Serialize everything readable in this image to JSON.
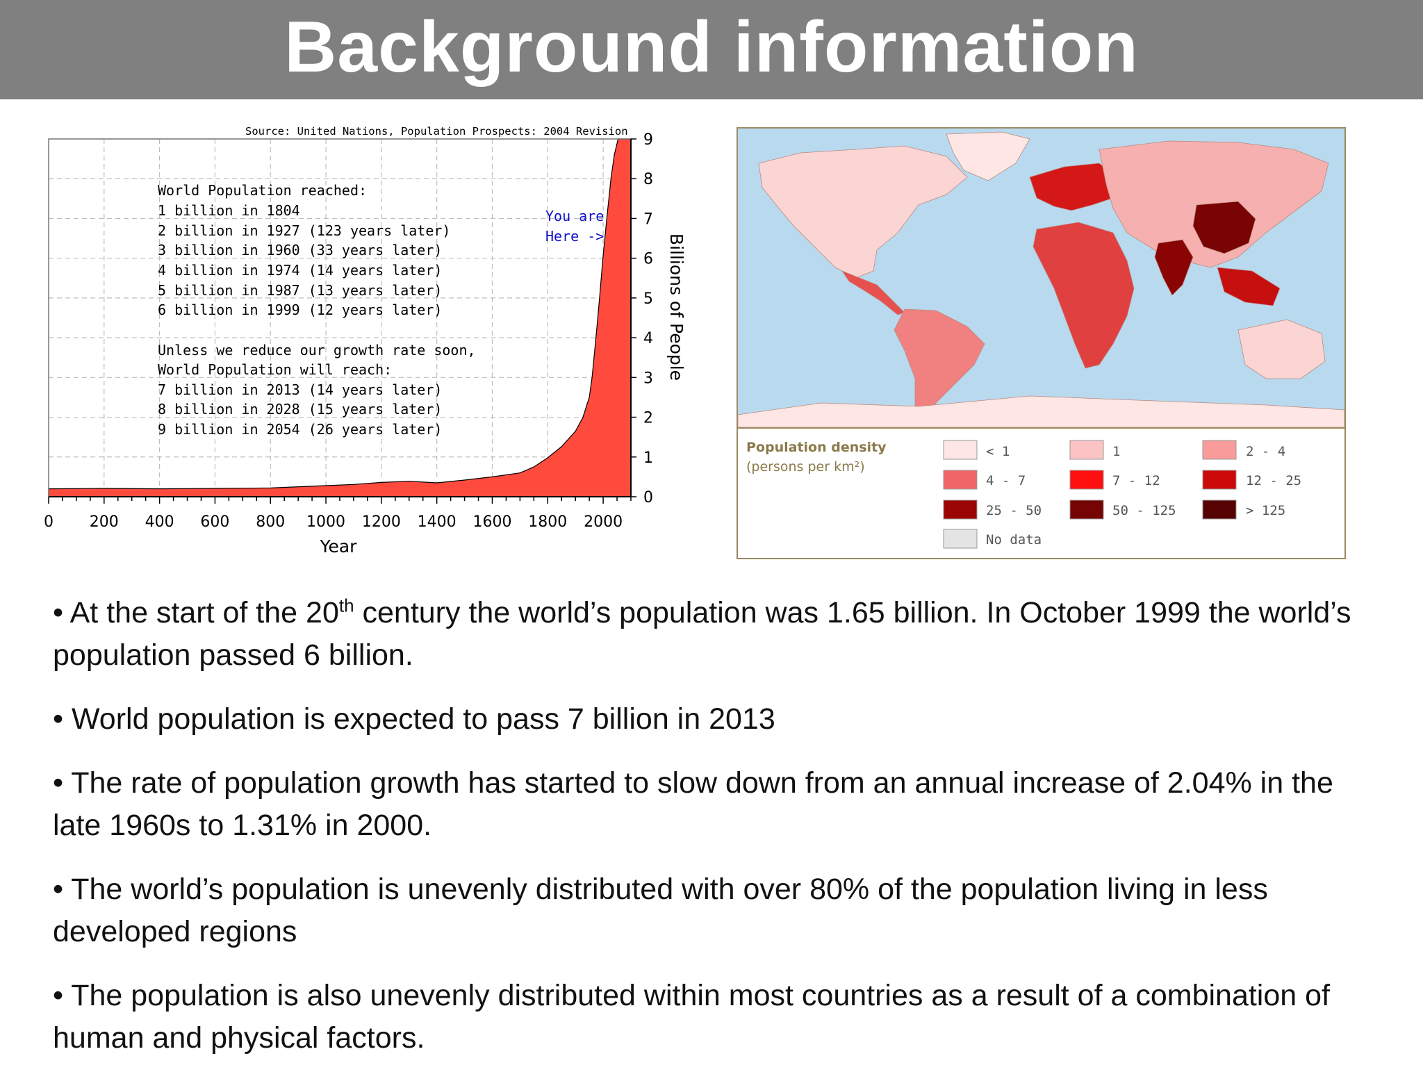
{
  "header": {
    "title": "Background information"
  },
  "chart": {
    "source": "Source: United Nations, Population Prospects: 2004 Revision",
    "milestones_heading": "World Population reached:",
    "milestones": [
      "1 billion in 1804",
      "2 billion in 1927 (123 years later)",
      "3 billion in 1960 (33 years later)",
      "4 billion in 1974 (14 years later)",
      "5 billion in 1987 (13 years later)",
      "6 billion in 1999 (12 years later)"
    ],
    "forecast_heading_1": "Unless we reduce our growth rate soon,",
    "forecast_heading_2": "World Population will reach:",
    "forecasts": [
      "7 billion in 2013 (14 years later)",
      "8 billion in 2028 (15 years later)",
      "9 billion in 2054 (26 years later)"
    ],
    "pointer_line_1": "You are",
    "pointer_line_2": "Here ->"
  },
  "chart_data": {
    "type": "area",
    "title": "",
    "xlabel": "Year",
    "ylabel": "Billions of People",
    "xlim": [
      0,
      2100
    ],
    "ylim": [
      0,
      9
    ],
    "x_ticks": [
      "0",
      "200",
      "400",
      "600",
      "800",
      "1000",
      "1200",
      "1400",
      "1600",
      "1800",
      "2000"
    ],
    "y_ticks": [
      "0",
      "1",
      "2",
      "3",
      "4",
      "5",
      "6",
      "7",
      "8",
      "9"
    ],
    "grid": true,
    "series": [
      {
        "values_x": [
          0,
          200,
          400,
          600,
          800,
          1000,
          1100,
          1200,
          1300,
          1400,
          1500,
          1600,
          1700,
          1750,
          1800,
          1850,
          1900,
          1927,
          1950,
          1960,
          1974,
          1987,
          1999,
          2013,
          2028,
          2040,
          2054
        ],
        "values_y": [
          0.2,
          0.21,
          0.2,
          0.21,
          0.22,
          0.28,
          0.31,
          0.36,
          0.39,
          0.35,
          0.42,
          0.5,
          0.6,
          0.75,
          0.98,
          1.26,
          1.65,
          2.0,
          2.5,
          3.0,
          4.0,
          5.0,
          6.0,
          7.0,
          8.0,
          8.6,
          9.0
        ]
      }
    ],
    "color": "#ff4b3e"
  },
  "map": {
    "legend_title": "Population density",
    "legend_subtitle": "(persons per km²)",
    "legend_items": [
      {
        "label": "< 1",
        "color": "#fde6e4"
      },
      {
        "label": "1",
        "color": "#fbc3c3"
      },
      {
        "label": "2 - 4",
        "color": "#f99b9b"
      },
      {
        "label": "4 - 7",
        "color": "#f06666"
      },
      {
        "label": "7 - 12",
        "color": "#ff1010"
      },
      {
        "label": "12 - 25",
        "color": "#cc0a0a"
      },
      {
        "label": "25 - 50",
        "color": "#9c0505"
      },
      {
        "label": "50 - 125",
        "color": "#760404"
      },
      {
        "label": "> 125",
        "color": "#560202"
      },
      {
        "label": "No data",
        "color": "#e4e4e4"
      }
    ],
    "colors": {
      "ocean": "#b9d9ef",
      "border": "#9a8a63"
    }
  },
  "bullets": [
    {
      "a": "• At the start of the 20",
      "sup": "th",
      "b": " century the world’s population was 1.65 billion. In October 1999 the world’s population passed 6 billion."
    },
    {
      "a": "• World population is expected to pass 7 billion in 2013"
    },
    {
      "a": "• The rate of population growth has started to slow down from an annual increase of 2.04% in the late 1960s to 1.31% in 2000."
    },
    {
      "a": "• The world’s population is unevenly distributed with over 80% of the population living in less developed regions"
    },
    {
      "a": "• The population is also unevenly distributed within most countries as a result of a combination of human and physical factors."
    }
  ]
}
